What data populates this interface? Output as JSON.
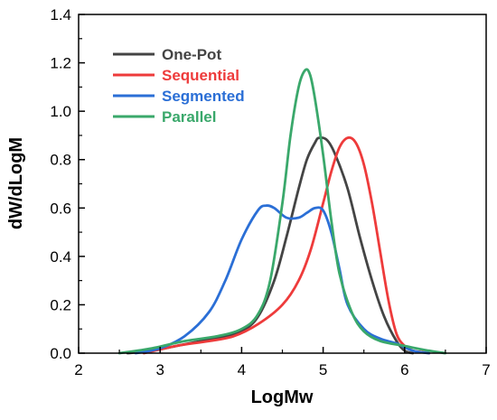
{
  "chart_data": {
    "type": "line",
    "xlabel": "LogMw",
    "ylabel": "dW/dLogM",
    "xlim": [
      2,
      7
    ],
    "ylim": [
      0,
      1.4
    ],
    "xticks": [
      "2",
      "3",
      "4",
      "5",
      "6",
      "7"
    ],
    "yticks": [
      "0.0",
      "0.2",
      "0.4",
      "0.6",
      "0.8",
      "1.0",
      "1.2",
      "1.4"
    ],
    "grid": false,
    "legend_position": "top-left",
    "series": [
      {
        "name": "One-Pot",
        "color": "#444444",
        "x": [
          2.6,
          2.9,
          3.2,
          3.5,
          3.8,
          4.0,
          4.2,
          4.4,
          4.55,
          4.7,
          4.8,
          4.9,
          4.95,
          5.05,
          5.15,
          5.3,
          5.45,
          5.6,
          5.75,
          5.9,
          6.0,
          6.1
        ],
        "y": [
          0.0,
          0.01,
          0.03,
          0.05,
          0.07,
          0.09,
          0.15,
          0.3,
          0.48,
          0.68,
          0.8,
          0.87,
          0.89,
          0.88,
          0.82,
          0.68,
          0.48,
          0.3,
          0.15,
          0.05,
          0.01,
          0.0
        ]
      },
      {
        "name": "Sequential",
        "color": "#ee3b3b",
        "x": [
          2.8,
          3.2,
          3.6,
          3.9,
          4.2,
          4.5,
          4.7,
          4.85,
          5.0,
          5.1,
          5.2,
          5.3,
          5.4,
          5.5,
          5.6,
          5.7,
          5.8,
          5.9,
          6.0,
          6.1,
          6.2,
          6.3
        ],
        "y": [
          0.0,
          0.03,
          0.05,
          0.07,
          0.12,
          0.2,
          0.3,
          0.43,
          0.62,
          0.75,
          0.85,
          0.89,
          0.87,
          0.78,
          0.62,
          0.42,
          0.22,
          0.08,
          0.03,
          0.01,
          0.005,
          0.0
        ]
      },
      {
        "name": "Segmented",
        "color": "#2b6fd6",
        "x": [
          2.7,
          3.0,
          3.3,
          3.6,
          3.8,
          4.0,
          4.2,
          4.3,
          4.4,
          4.55,
          4.7,
          4.8,
          4.9,
          5.0,
          5.1,
          5.2,
          5.3,
          5.5,
          5.7,
          5.9,
          6.1,
          6.3
        ],
        "y": [
          0.0,
          0.02,
          0.07,
          0.17,
          0.3,
          0.47,
          0.59,
          0.61,
          0.6,
          0.56,
          0.56,
          0.58,
          0.6,
          0.59,
          0.5,
          0.35,
          0.2,
          0.1,
          0.06,
          0.04,
          0.01,
          0.0
        ]
      },
      {
        "name": "Parallel",
        "color": "#3aa86b",
        "x": [
          2.5,
          2.9,
          3.3,
          3.7,
          4.0,
          4.2,
          4.35,
          4.5,
          4.6,
          4.7,
          4.78,
          4.84,
          4.9,
          5.0,
          5.1,
          5.2,
          5.35,
          5.5,
          5.7,
          6.0,
          6.3,
          6.5
        ],
        "y": [
          0.0,
          0.02,
          0.05,
          0.07,
          0.1,
          0.16,
          0.3,
          0.62,
          0.9,
          1.1,
          1.17,
          1.15,
          1.05,
          0.82,
          0.55,
          0.33,
          0.17,
          0.09,
          0.05,
          0.03,
          0.01,
          0.0
        ]
      }
    ]
  }
}
